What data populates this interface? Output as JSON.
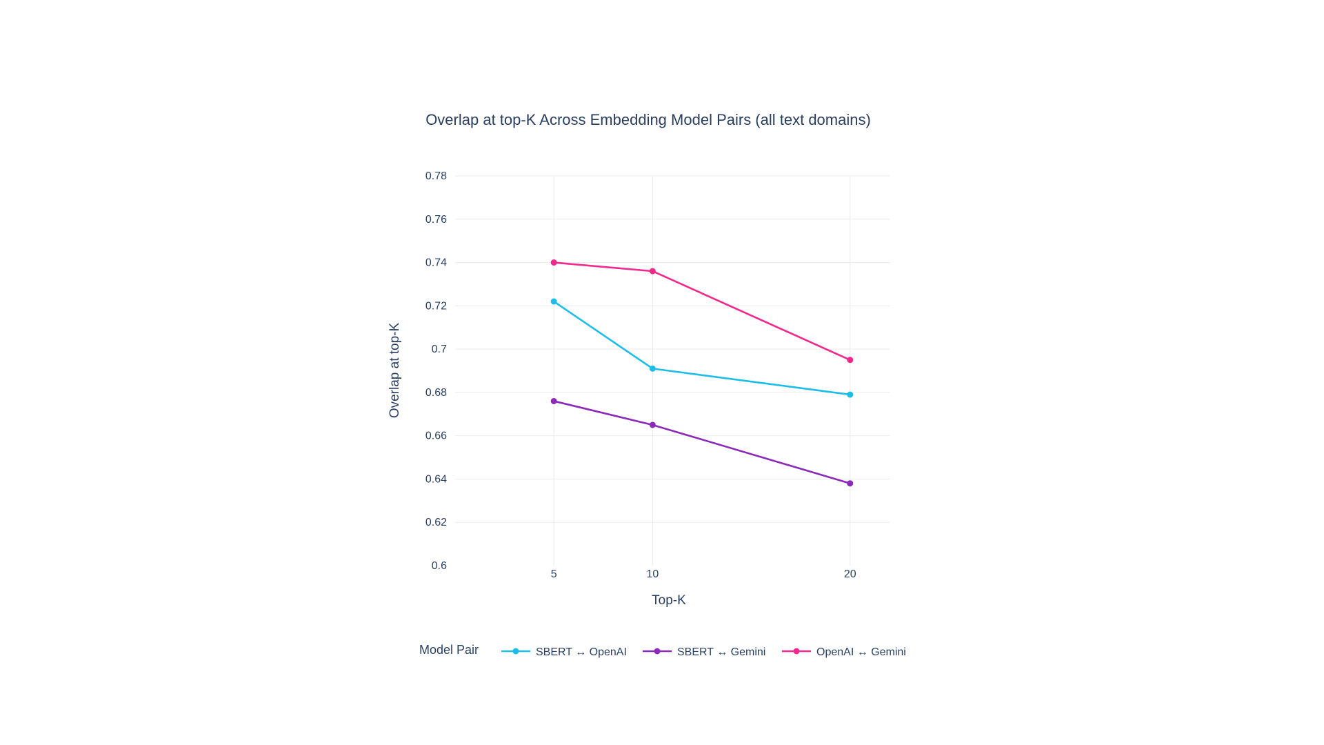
{
  "chart_data": {
    "type": "line",
    "title": "Overlap at top-K Across Embedding Model Pairs (all text domains)",
    "xlabel": "Top-K",
    "ylabel": "Overlap at top-K",
    "x": [
      5,
      10,
      20
    ],
    "x_tick_labels": [
      "5",
      "10",
      "20"
    ],
    "xlim": [
      0,
      22
    ],
    "ylim": [
      0.6,
      0.78
    ],
    "y_ticks": [
      0.6,
      0.62,
      0.64,
      0.66,
      0.68,
      0.7,
      0.72,
      0.74,
      0.76,
      0.78
    ],
    "y_tick_labels": [
      "0.6",
      "0.62",
      "0.64",
      "0.66",
      "0.68",
      "0.7",
      "0.72",
      "0.74",
      "0.76",
      "0.78"
    ],
    "grid": true,
    "legend_title": "Model Pair",
    "legend_position": "bottom",
    "series": [
      {
        "name": "SBERT ↔ OpenAI",
        "color": "#1cbde9",
        "values": [
          0.722,
          0.691,
          0.679
        ]
      },
      {
        "name": "SBERT ↔ Gemini",
        "color": "#8b2ab8",
        "values": [
          0.676,
          0.665,
          0.638
        ]
      },
      {
        "name": "OpenAI ↔ Gemini",
        "color": "#f2298c",
        "values": [
          0.74,
          0.736,
          0.695
        ]
      }
    ]
  }
}
